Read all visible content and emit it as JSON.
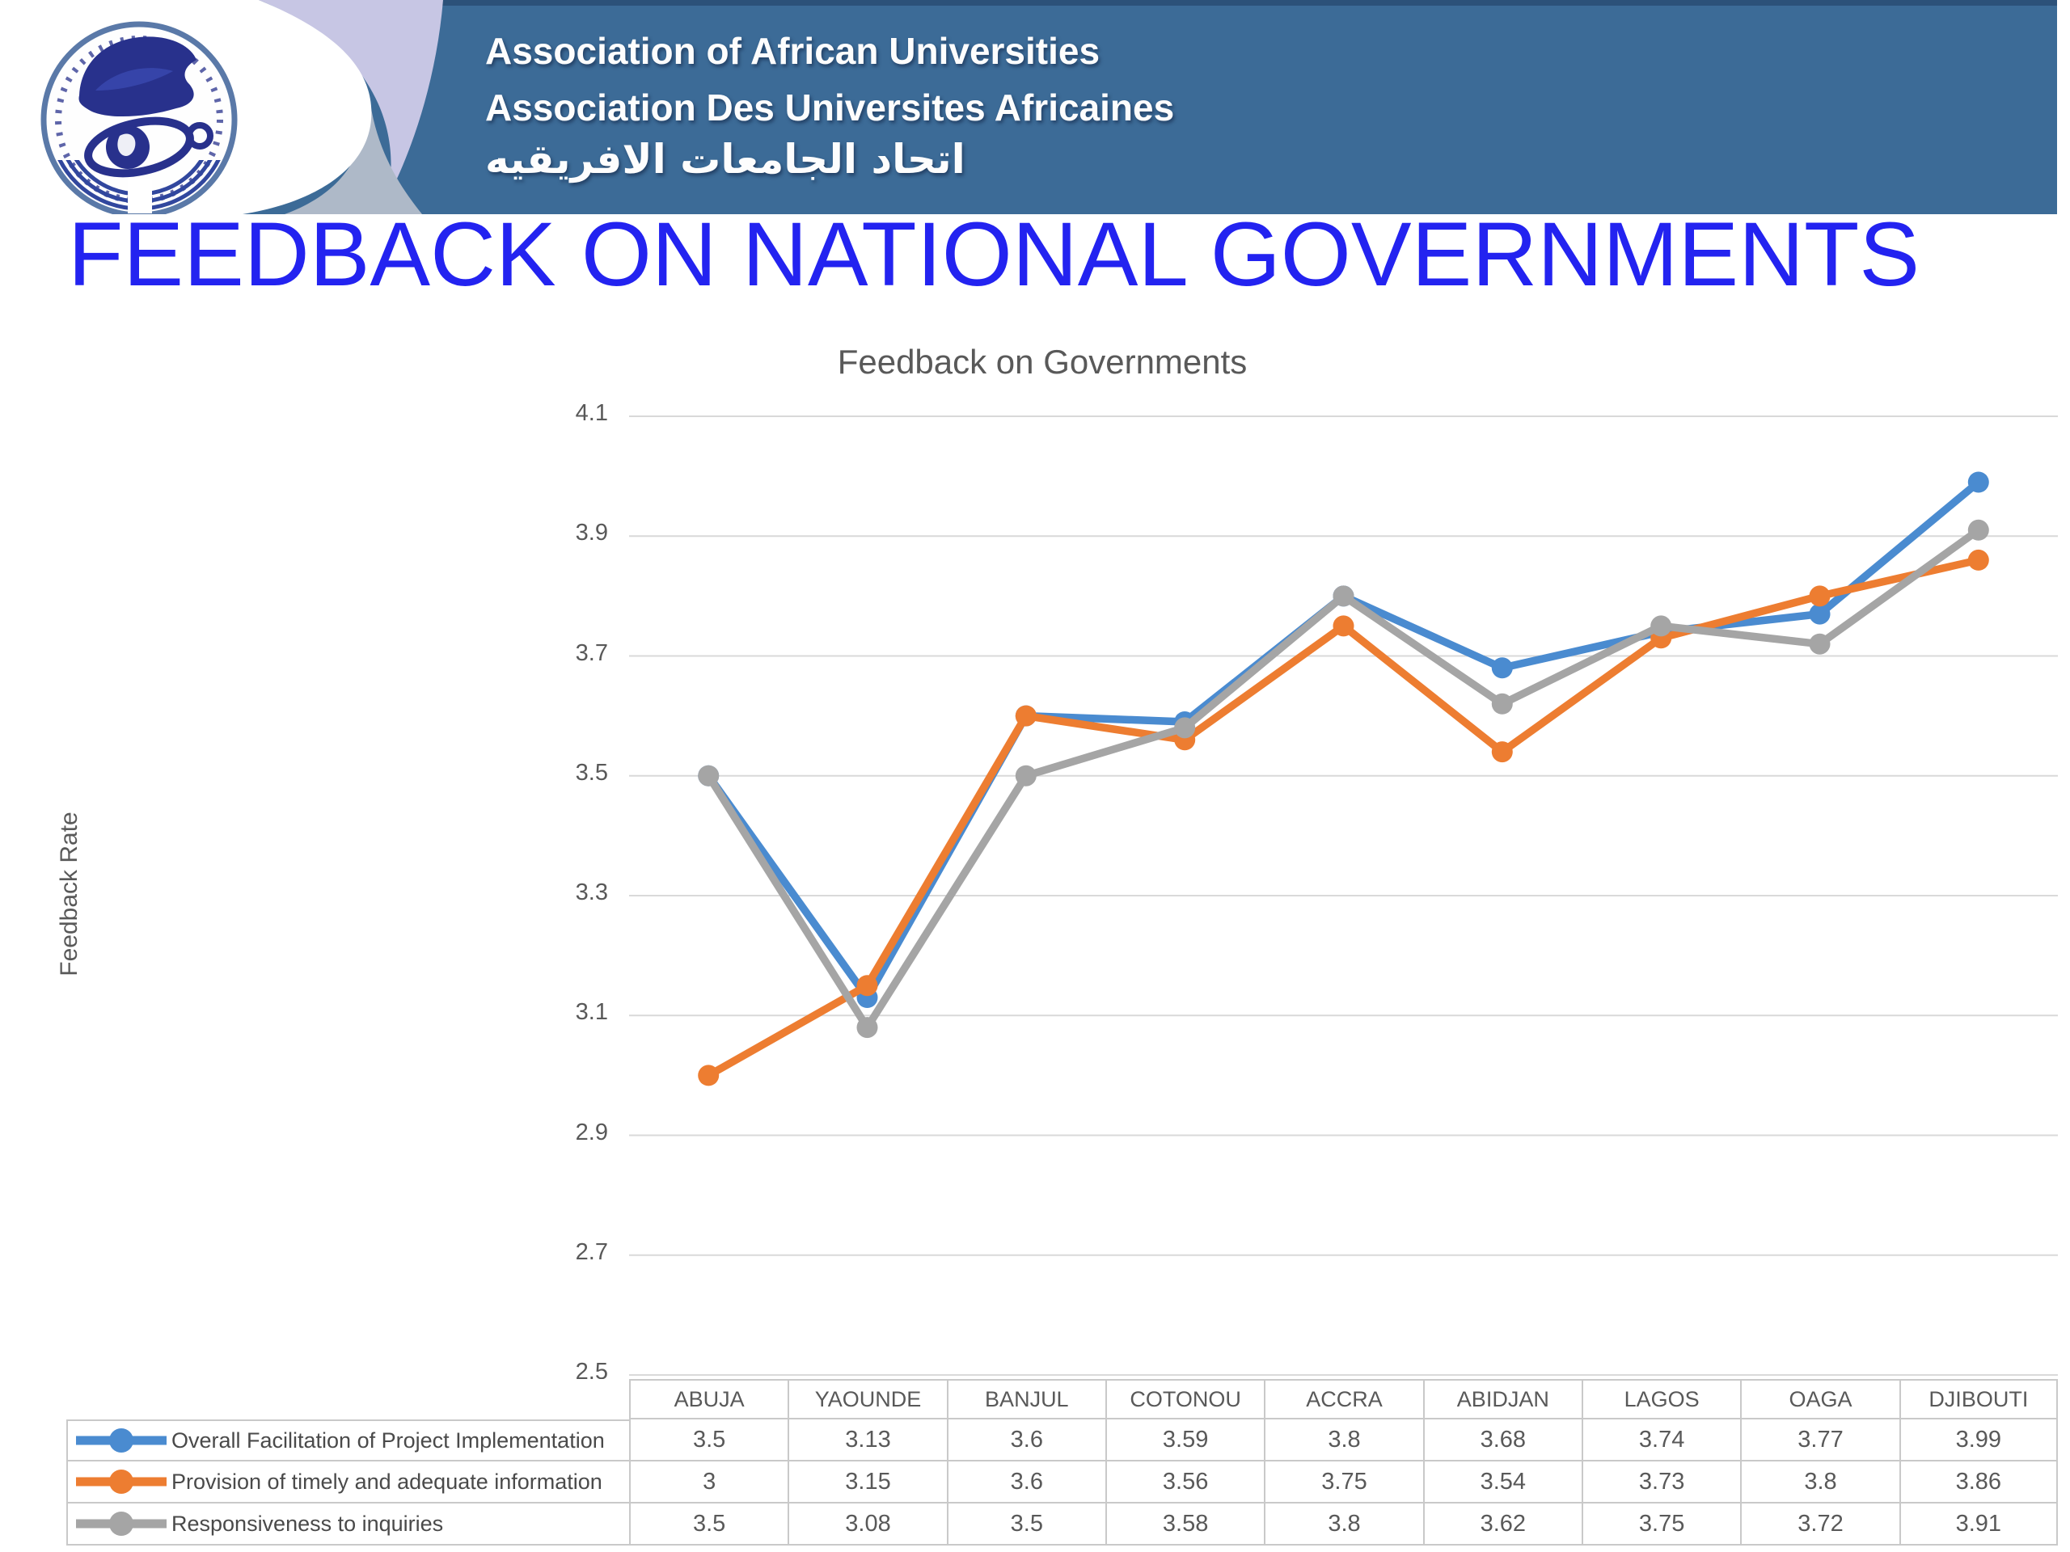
{
  "header": {
    "org_name_en": "Association of African Universities",
    "org_name_fr": "Association Des Universites Africaines",
    "org_name_ar": "اتحاد الجامعات الافريقيه",
    "banner_color": "#3c6b97",
    "accent_lavender": "#c7c6e4",
    "accent_grayblue": "#aeb9c8",
    "logo_navy": "#28318c"
  },
  "page_title": "FEEDBACK ON NATIONAL GOVERNMENTS",
  "page_title_color": "#2323f0",
  "chart_data": {
    "type": "line",
    "title": "Feedback on Governments",
    "xlabel": "",
    "ylabel": "Feedback Rate",
    "categories": [
      "ABUJA",
      "YAOUNDE",
      "BANJUL",
      "COTONOU",
      "ACCRA",
      "ABIDJAN",
      "LAGOS",
      "OAGA",
      "DJIBOUTI"
    ],
    "series": [
      {
        "name": "Overall Facilitation of Project Implementation",
        "color": "#4a8bd0",
        "values": [
          3.5,
          3.13,
          3.6,
          3.59,
          3.8,
          3.68,
          3.74,
          3.77,
          3.99
        ]
      },
      {
        "name": "Provision of timely and adequate information",
        "color": "#ed7d31",
        "values": [
          3,
          3.15,
          3.6,
          3.56,
          3.75,
          3.54,
          3.73,
          3.8,
          3.86
        ]
      },
      {
        "name": "Responsiveness to inquiries",
        "color": "#a5a5a5",
        "values": [
          3.5,
          3.08,
          3.5,
          3.58,
          3.8,
          3.62,
          3.75,
          3.72,
          3.91
        ]
      }
    ],
    "ylim": [
      2.5,
      4.1
    ],
    "yticks": [
      4.1,
      3.9,
      3.7,
      3.5,
      3.3,
      3.1,
      2.9,
      2.7,
      2.5
    ],
    "grid": true,
    "gridline_color": "#d9d9d9",
    "legend_position": "table-left"
  }
}
